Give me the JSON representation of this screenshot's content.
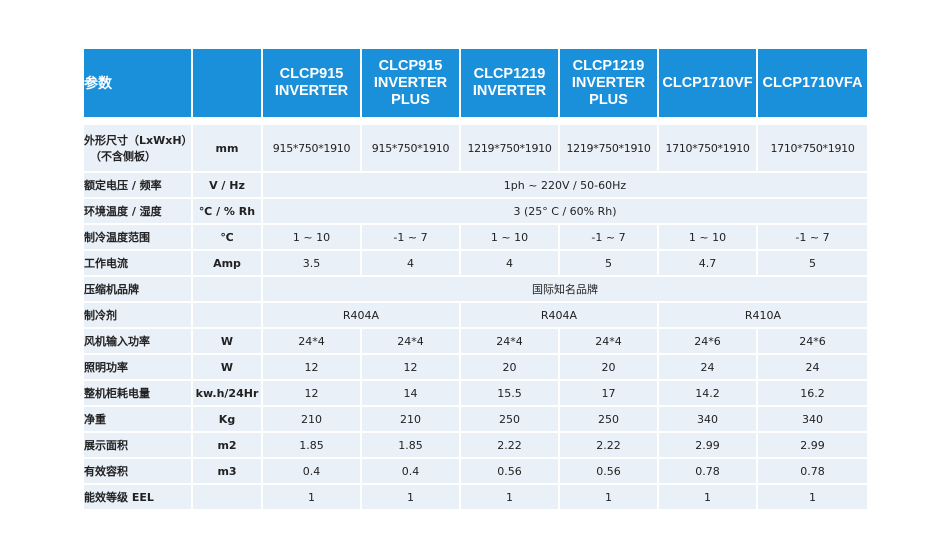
{
  "header": {
    "param": "参数",
    "unit": "",
    "models": [
      "CLCP915\nINVERTER",
      "CLCP915\nINVERTER\nPLUS",
      "CLCP1219\nINVERTER",
      "CLCP1219\nINVERTER\nPLUS",
      "CLCP1710VF",
      "CLCP1710VFA"
    ]
  },
  "rows": {
    "dimensions": {
      "label_line1": "外形尺寸（LxWxH）",
      "label_line2": "（不含侧板）",
      "unit": "mm",
      "values": [
        "915*750*1910",
        "915*750*1910",
        "1219*750*1910",
        "1219*750*1910",
        "1710*750*1910",
        "1710*750*1910"
      ]
    },
    "voltage": {
      "label": "额定电压 / 频率",
      "unit": "V / Hz",
      "value": "1ph ~ 220V / 50-60Hz"
    },
    "ambient": {
      "label": "环境温度 / 湿度",
      "unit": "℃ / % Rh",
      "value": "3 (25° C / 60% Rh)"
    },
    "cooling_range": {
      "label": "制冷温度范围",
      "unit": "℃",
      "values": [
        "1 ~ 10",
        "-1 ~ 7",
        "1 ~ 10",
        "-1 ~ 7",
        "1 ~ 10",
        "-1 ~ 7"
      ]
    },
    "current": {
      "label": "工作电流",
      "unit": "Amp",
      "values": [
        "3.5",
        "4",
        "4",
        "5",
        "4.7",
        "5"
      ]
    },
    "compressor": {
      "label": "压缩机品牌",
      "unit": "",
      "value": "国际知名品牌"
    },
    "refrigerant": {
      "label": "制冷剂",
      "unit": "",
      "values": [
        "R404A",
        "R404A",
        "R410A"
      ]
    },
    "fan_power": {
      "label": "风机输入功率",
      "unit": "W",
      "values": [
        "24*4",
        "24*4",
        "24*4",
        "24*4",
        "24*6",
        "24*6"
      ]
    },
    "light_power": {
      "label": "照明功率",
      "unit": "W",
      "values": [
        "12",
        "12",
        "20",
        "20",
        "24",
        "24"
      ]
    },
    "energy": {
      "label": "整机柜耗电量",
      "unit": "kw.h/24Hr",
      "values": [
        "12",
        "14",
        "15.5",
        "17",
        "14.2",
        "16.2"
      ]
    },
    "weight": {
      "label": "净重",
      "unit": "Kg",
      "values": [
        "210",
        "210",
        "250",
        "250",
        "340",
        "340"
      ]
    },
    "display_area": {
      "label": "展示面积",
      "unit": "m2",
      "values": [
        "1.85",
        "1.85",
        "2.22",
        "2.22",
        "2.99",
        "2.99"
      ]
    },
    "volume": {
      "label": "有效容积",
      "unit": "m3",
      "values": [
        "0.4",
        "0.4",
        "0.56",
        "0.56",
        "0.78",
        "0.78"
      ]
    },
    "eel": {
      "label": "能效等级 EEL",
      "unit": "",
      "values": [
        "1",
        "1",
        "1",
        "1",
        "1",
        "1"
      ]
    }
  }
}
